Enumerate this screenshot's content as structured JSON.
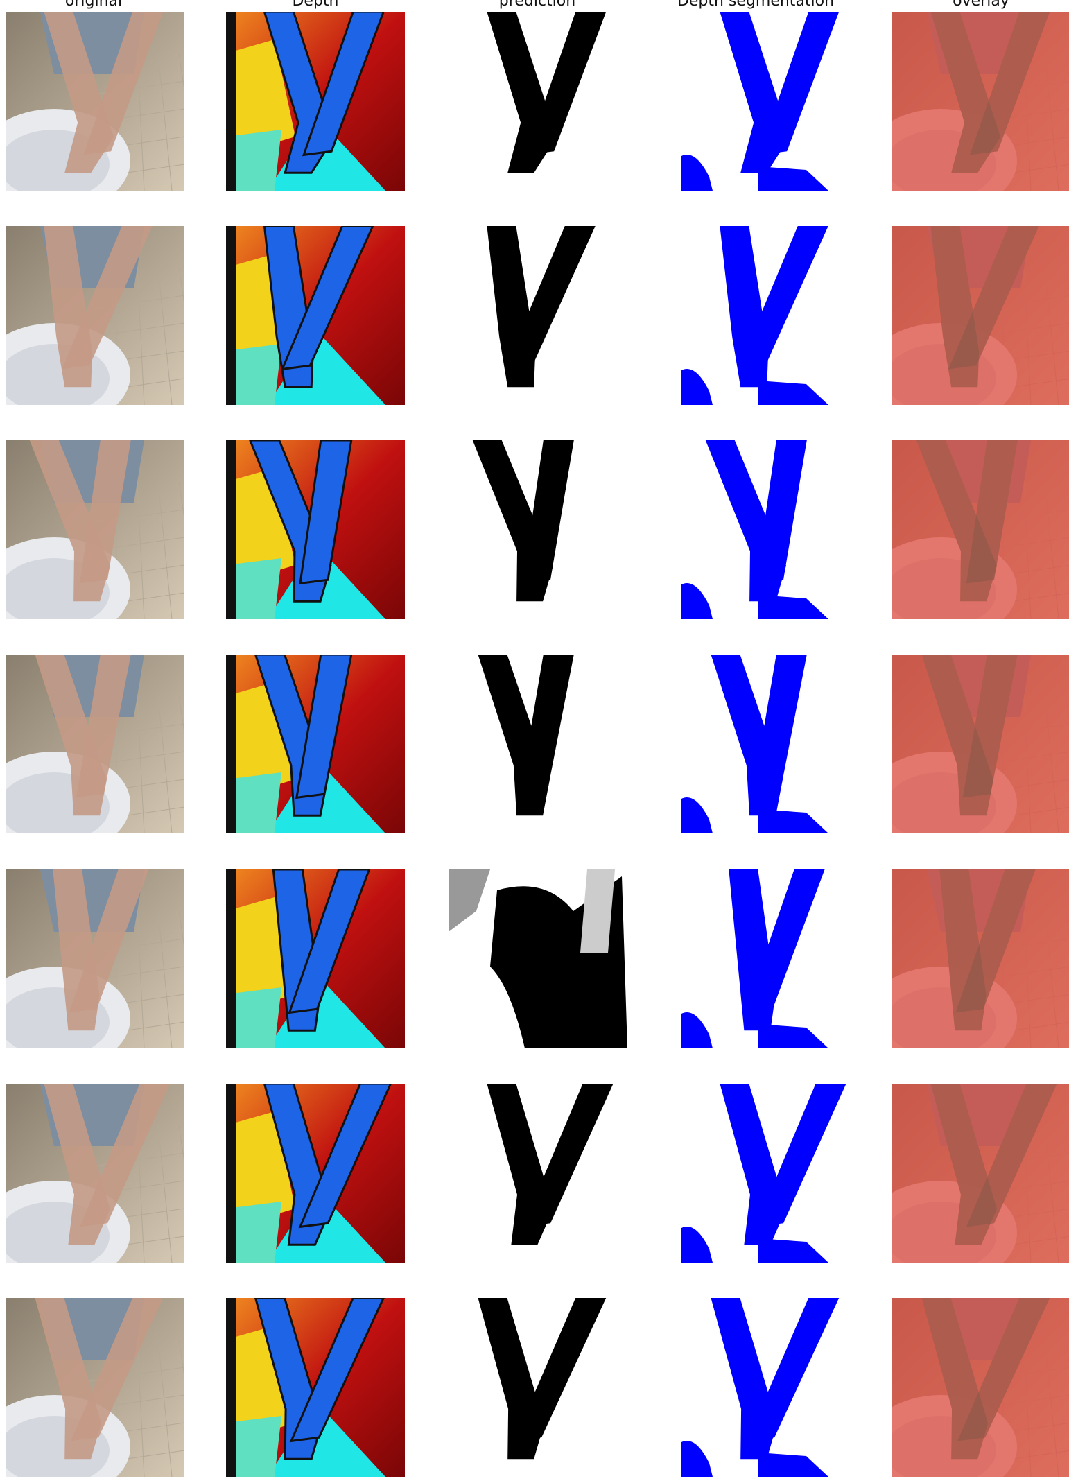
{
  "figure": {
    "columns": [
      {
        "key": "original",
        "title": "original"
      },
      {
        "key": "depth",
        "title": "Depth"
      },
      {
        "key": "prediction",
        "title": "prediction"
      },
      {
        "key": "depth_segmentation",
        "title": "Depth segmentation"
      },
      {
        "key": "overlay",
        "title": "overlay"
      }
    ],
    "row_count": 7,
    "colors": {
      "background": "#ffffff",
      "segmentation_blue": "#0000ff",
      "prediction_black": "#000000",
      "overlay_red": "#e04a3c",
      "depth_red": "#c01010",
      "depth_yellow": "#f2d21a",
      "depth_cyan": "#21e6e6",
      "depth_blue": "#1e64e6"
    }
  }
}
